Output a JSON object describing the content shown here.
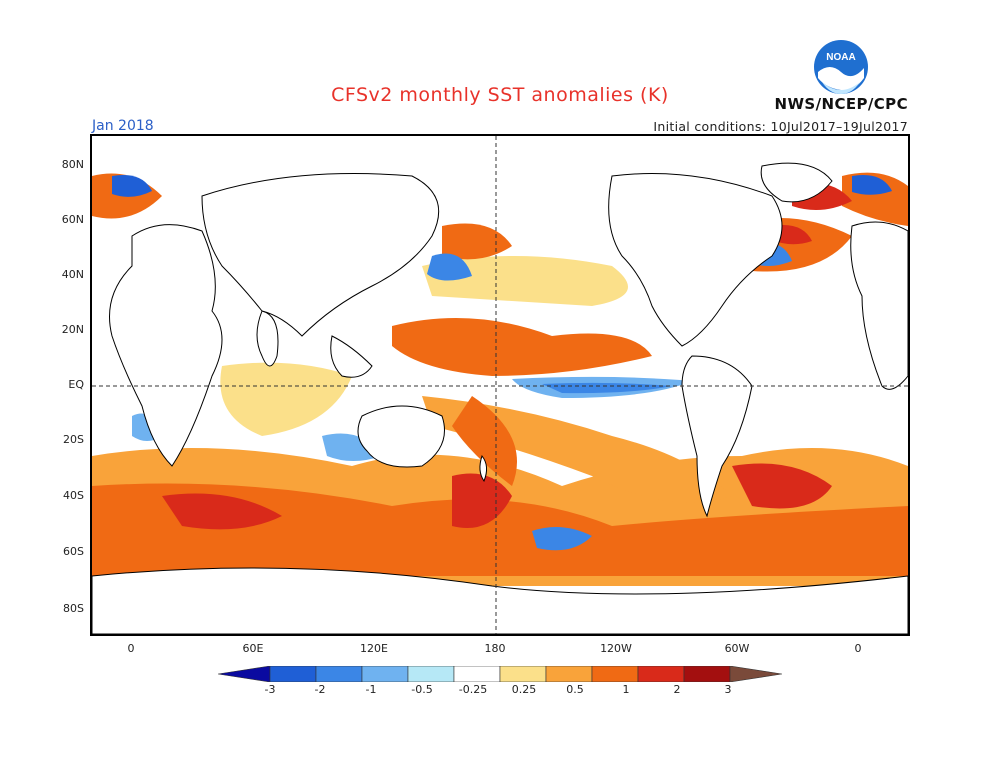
{
  "header": {
    "title": "CFSv2 monthly SST anomalies (K)",
    "month": "Jan 2018",
    "agency": "NWS/NCEP/CPC",
    "logo_text": "NOAA",
    "initial_conditions": "Initial conditions: 10Jul2017–19Jul2017"
  },
  "axes": {
    "lat_labels": [
      "80N",
      "60N",
      "40N",
      "20N",
      "EQ",
      "20S",
      "40S",
      "60S",
      "80S"
    ],
    "lon_labels": [
      "0",
      "60E",
      "120E",
      "180",
      "120W",
      "60W",
      "0"
    ]
  },
  "colorbar": {
    "labels": [
      "-3",
      "-2",
      "-1",
      "-0.5",
      "-0.25",
      "0.25",
      "0.5",
      "1",
      "2",
      "3"
    ],
    "colors": [
      "#0a0aa0",
      "#1f5fd6",
      "#3b86e6",
      "#6fb2f0",
      "#b6e8f6",
      "#ffffff",
      "#fbe08a",
      "#f9a33a",
      "#f06a14",
      "#d92a1a",
      "#a30f0f",
      "#7a4a3a"
    ]
  },
  "colors": {
    "title": "#e8322a",
    "month": "#2b5fc7"
  }
}
